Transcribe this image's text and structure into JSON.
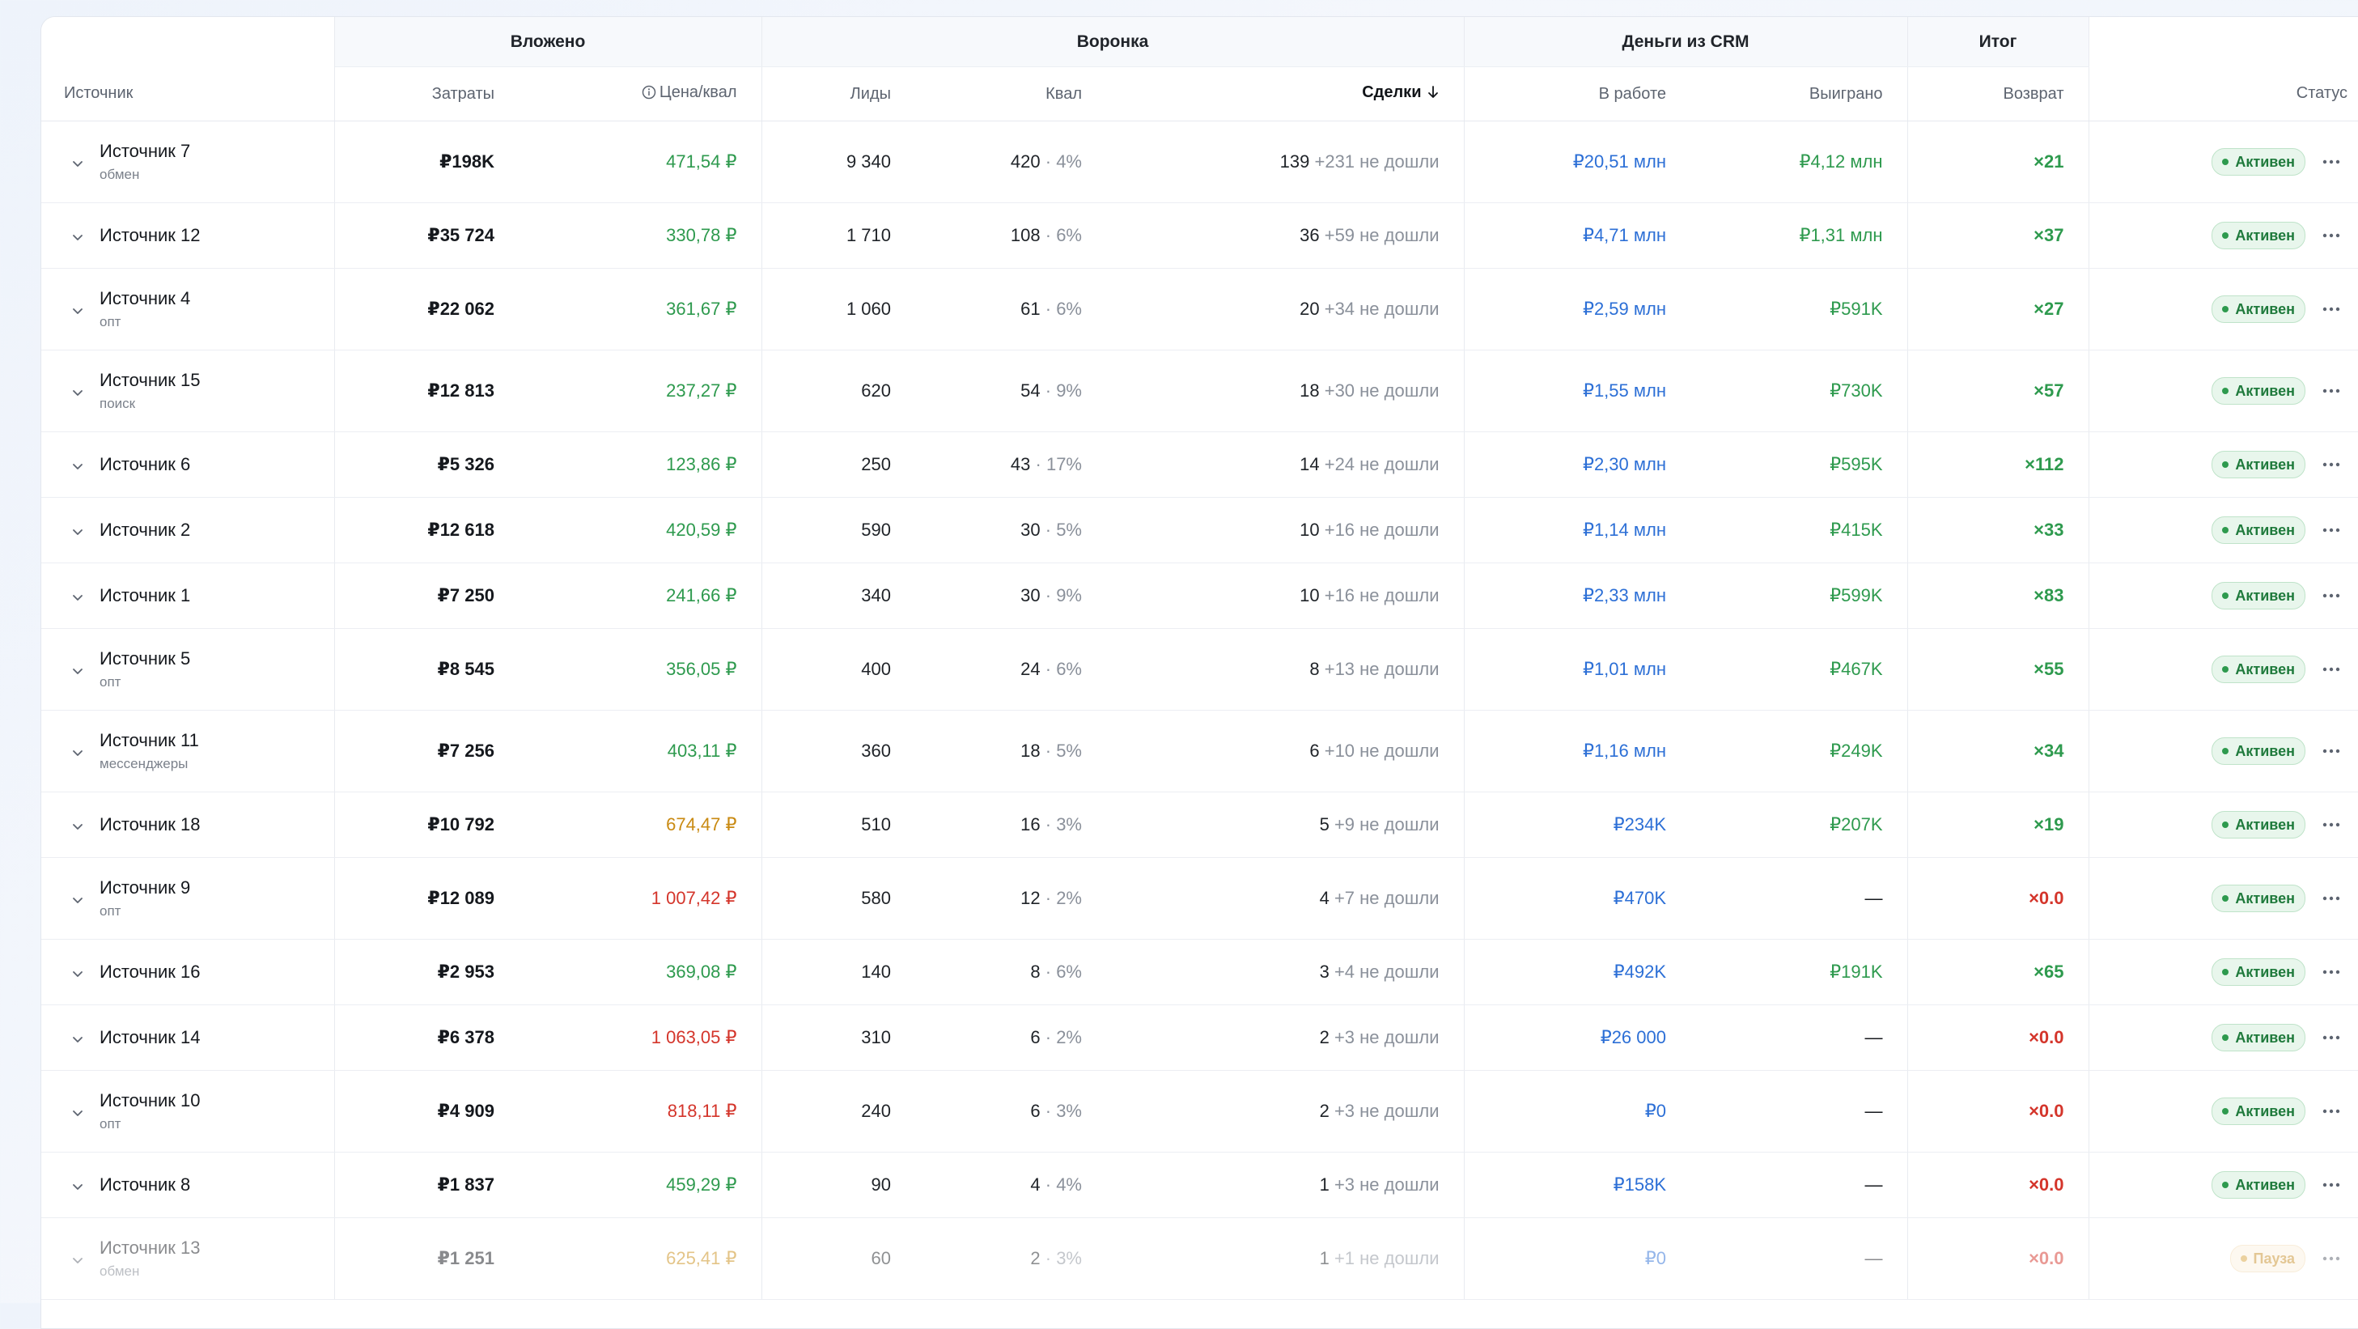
{
  "groups": {
    "invested": "Вложено",
    "funnel": "Воронка",
    "crm_money": "Деньги из CRM",
    "total": "Итог"
  },
  "columns": {
    "source": "Источник",
    "cost": "Затраты",
    "price": "Цена/квал",
    "leads": "Лиды",
    "qual": "Квал",
    "deals": "Сделки",
    "in_work": "В работе",
    "won": "Выиграно",
    "return": "Возврат",
    "status": "Статус"
  },
  "sort": {
    "column": "deals",
    "direction": "desc"
  },
  "colors": {
    "green": "#2e9a4e",
    "orange": "#c98a12",
    "red": "#d4352b",
    "blue": "#2c6fd6",
    "active_badge_bg": "#e8f6ec",
    "pause_badge_bg": "#fdf3e3"
  },
  "rows": [
    {
      "name": "Источник 7",
      "sub": "обмен",
      "cost": "₽198K",
      "price": "471,54 ₽",
      "price_color": "green",
      "leads": "9 340",
      "qual": "420",
      "qual_pct": "· 4%",
      "deals": "139",
      "deals_extra": "+231 не дошли",
      "in_work": "₽20,51 млн",
      "won": "₽4,12 млн",
      "ret": "×21",
      "ret_color": "green",
      "status": "Активен",
      "state": "active"
    },
    {
      "name": "Источник 12",
      "sub": "",
      "cost": "₽35 724",
      "price": "330,78 ₽",
      "price_color": "green",
      "leads": "1 710",
      "qual": "108",
      "qual_pct": "· 6%",
      "deals": "36",
      "deals_extra": "+59 не дошли",
      "in_work": "₽4,71 млн",
      "won": "₽1,31 млн",
      "ret": "×37",
      "ret_color": "green",
      "status": "Активен",
      "state": "active"
    },
    {
      "name": "Источник 4",
      "sub": "опт",
      "cost": "₽22 062",
      "price": "361,67 ₽",
      "price_color": "green",
      "leads": "1 060",
      "qual": "61",
      "qual_pct": "· 6%",
      "deals": "20",
      "deals_extra": "+34 не дошли",
      "in_work": "₽2,59 млн",
      "won": "₽591K",
      "ret": "×27",
      "ret_color": "green",
      "status": "Активен",
      "state": "active"
    },
    {
      "name": "Источник 15",
      "sub": "поиск",
      "cost": "₽12 813",
      "price": "237,27 ₽",
      "price_color": "green",
      "leads": "620",
      "qual": "54",
      "qual_pct": "· 9%",
      "deals": "18",
      "deals_extra": "+30 не дошли",
      "in_work": "₽1,55 млн",
      "won": "₽730K",
      "ret": "×57",
      "ret_color": "green",
      "status": "Активен",
      "state": "active"
    },
    {
      "name": "Источник 6",
      "sub": "",
      "cost": "₽5 326",
      "price": "123,86 ₽",
      "price_color": "green",
      "leads": "250",
      "qual": "43",
      "qual_pct": "· 17%",
      "deals": "14",
      "deals_extra": "+24 не дошли",
      "in_work": "₽2,30 млн",
      "won": "₽595K",
      "ret": "×112",
      "ret_color": "green",
      "status": "Активен",
      "state": "active"
    },
    {
      "name": "Источник 2",
      "sub": "",
      "cost": "₽12 618",
      "price": "420,59 ₽",
      "price_color": "green",
      "leads": "590",
      "qual": "30",
      "qual_pct": "· 5%",
      "deals": "10",
      "deals_extra": "+16 не дошли",
      "in_work": "₽1,14 млн",
      "won": "₽415K",
      "ret": "×33",
      "ret_color": "green",
      "status": "Активен",
      "state": "active"
    },
    {
      "name": "Источник 1",
      "sub": "",
      "cost": "₽7 250",
      "price": "241,66 ₽",
      "price_color": "green",
      "leads": "340",
      "qual": "30",
      "qual_pct": "· 9%",
      "deals": "10",
      "deals_extra": "+16 не дошли",
      "in_work": "₽2,33 млн",
      "won": "₽599K",
      "ret": "×83",
      "ret_color": "green",
      "status": "Активен",
      "state": "active"
    },
    {
      "name": "Источник 5",
      "sub": "опт",
      "cost": "₽8 545",
      "price": "356,05 ₽",
      "price_color": "green",
      "leads": "400",
      "qual": "24",
      "qual_pct": "· 6%",
      "deals": "8",
      "deals_extra": "+13 не дошли",
      "in_work": "₽1,01 млн",
      "won": "₽467K",
      "ret": "×55",
      "ret_color": "green",
      "status": "Активен",
      "state": "active"
    },
    {
      "name": "Источник 11",
      "sub": "мессенджеры",
      "cost": "₽7 256",
      "price": "403,11 ₽",
      "price_color": "green",
      "leads": "360",
      "qual": "18",
      "qual_pct": "· 5%",
      "deals": "6",
      "deals_extra": "+10 не дошли",
      "in_work": "₽1,16 млн",
      "won": "₽249K",
      "ret": "×34",
      "ret_color": "green",
      "status": "Активен",
      "state": "active"
    },
    {
      "name": "Источник 18",
      "sub": "",
      "cost": "₽10 792",
      "price": "674,47 ₽",
      "price_color": "orange",
      "leads": "510",
      "qual": "16",
      "qual_pct": "· 3%",
      "deals": "5",
      "deals_extra": "+9 не дошли",
      "in_work": "₽234K",
      "won": "₽207K",
      "ret": "×19",
      "ret_color": "green",
      "status": "Активен",
      "state": "active"
    },
    {
      "name": "Источник 9",
      "sub": "опт",
      "cost": "₽12 089",
      "price": "1 007,42 ₽",
      "price_color": "red",
      "leads": "580",
      "qual": "12",
      "qual_pct": "· 2%",
      "deals": "4",
      "deals_extra": "+7 не дошли",
      "in_work": "₽470K",
      "won": "—",
      "ret": "×0.0",
      "ret_color": "red",
      "status": "Активен",
      "state": "active"
    },
    {
      "name": "Источник 16",
      "sub": "",
      "cost": "₽2 953",
      "price": "369,08 ₽",
      "price_color": "green",
      "leads": "140",
      "qual": "8",
      "qual_pct": "· 6%",
      "deals": "3",
      "deals_extra": "+4 не дошли",
      "in_work": "₽492K",
      "won": "₽191K",
      "ret": "×65",
      "ret_color": "green",
      "status": "Активен",
      "state": "active"
    },
    {
      "name": "Источник 14",
      "sub": "",
      "cost": "₽6 378",
      "price": "1 063,05 ₽",
      "price_color": "red",
      "leads": "310",
      "qual": "6",
      "qual_pct": "· 2%",
      "deals": "2",
      "deals_extra": "+3 не дошли",
      "in_work": "₽26 000",
      "won": "—",
      "ret": "×0.0",
      "ret_color": "red",
      "status": "Активен",
      "state": "active"
    },
    {
      "name": "Источник 10",
      "sub": "опт",
      "cost": "₽4 909",
      "price": "818,11 ₽",
      "price_color": "red",
      "leads": "240",
      "qual": "6",
      "qual_pct": "· 3%",
      "deals": "2",
      "deals_extra": "+3 не дошли",
      "in_work": "₽0",
      "won": "—",
      "ret": "×0.0",
      "ret_color": "red",
      "status": "Активен",
      "state": "active"
    },
    {
      "name": "Источник 8",
      "sub": "",
      "cost": "₽1 837",
      "price": "459,29 ₽",
      "price_color": "green",
      "leads": "90",
      "qual": "4",
      "qual_pct": "· 4%",
      "deals": "1",
      "deals_extra": "+3 не дошли",
      "in_work": "₽158K",
      "won": "—",
      "ret": "×0.0",
      "ret_color": "red",
      "status": "Активен",
      "state": "active"
    },
    {
      "name": "Источник 13",
      "sub": "обмен",
      "cost": "₽1 251",
      "price": "625,41 ₽",
      "price_color": "orange",
      "leads": "60",
      "qual": "2",
      "qual_pct": "· 3%",
      "deals": "1",
      "deals_extra": "+1 не дошли",
      "in_work": "₽0",
      "won": "—",
      "ret": "×0.0",
      "ret_color": "red",
      "status": "Пауза",
      "state": "paused"
    }
  ]
}
